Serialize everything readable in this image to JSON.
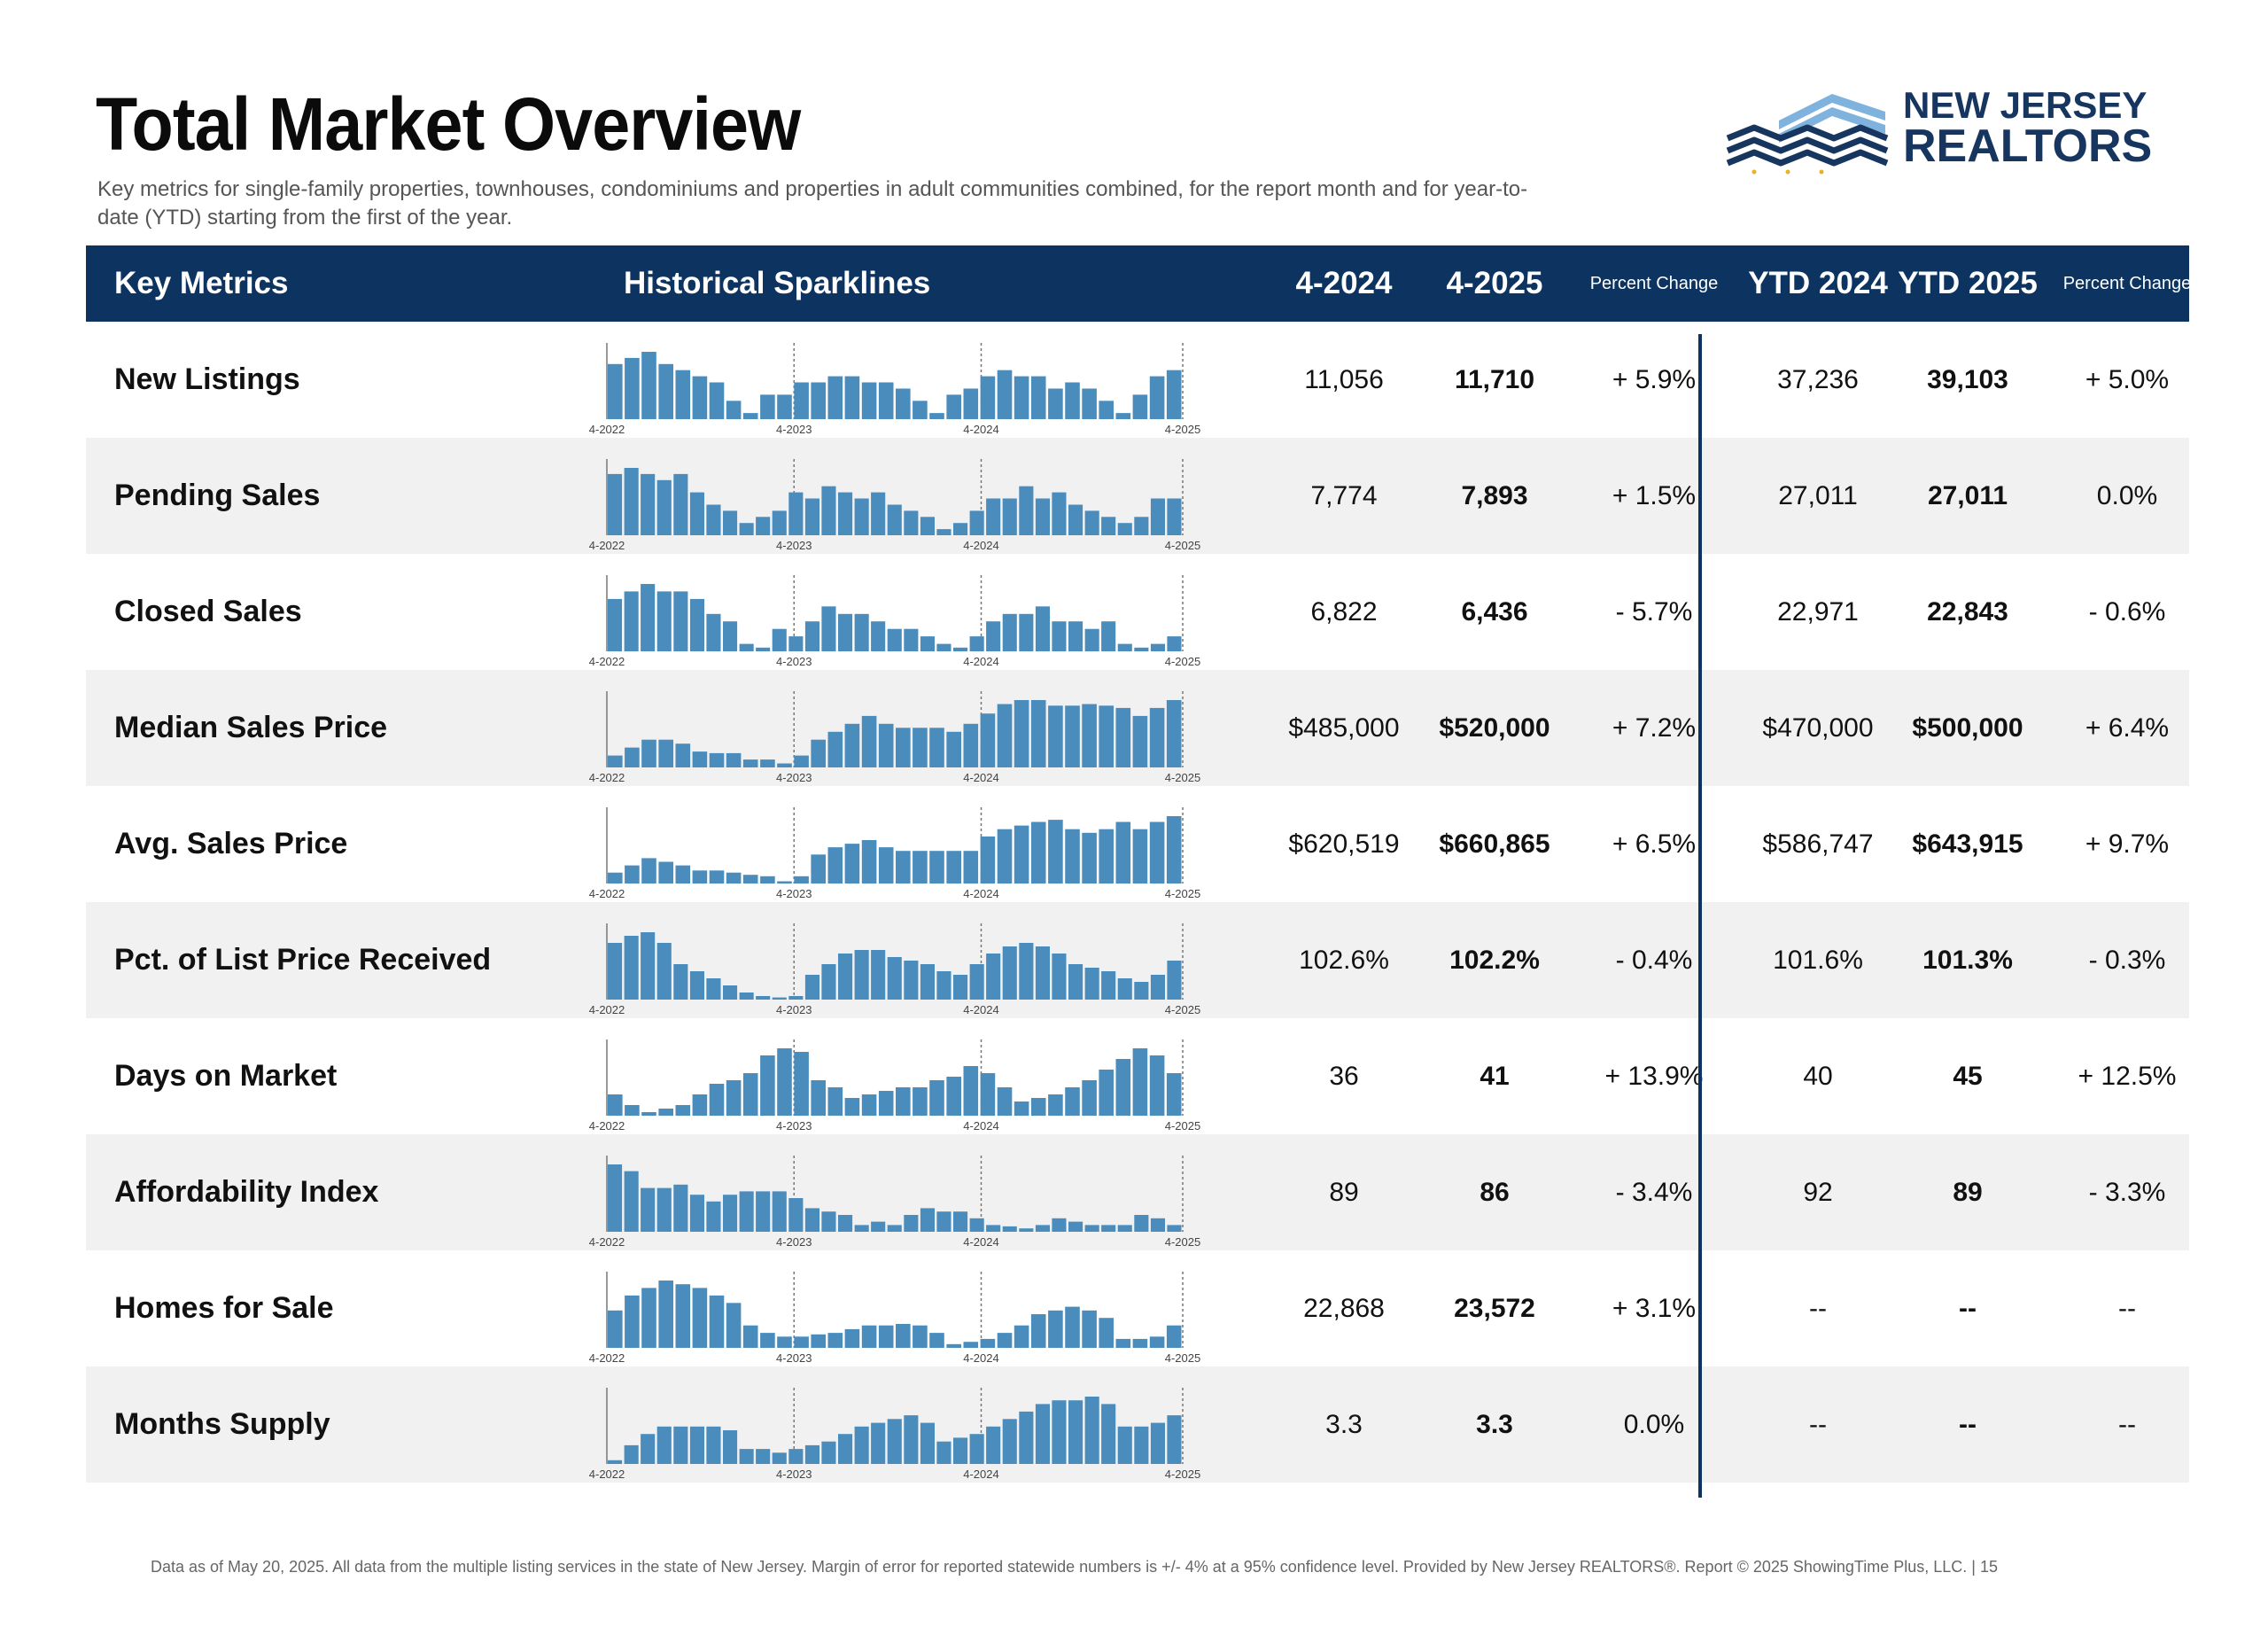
{
  "title": "Total Market Overview",
  "subtitle": "Key metrics for single-family properties, townhouses, condominiums and properties in adult communities combined, for the report month and for year-to-date (YTD) starting from the first of the year.",
  "logo": {
    "line1": "NEW JERSEY",
    "line2": "REALTORS"
  },
  "colors": {
    "header_bg": "#0d3460",
    "bar": "#4a8dbd",
    "alt_row": "#f1f1f1",
    "brand": "#16355f"
  },
  "table": {
    "headers": {
      "metric": "Key Metrics",
      "sparklines": "Historical Sparklines",
      "m2024": "4-2024",
      "m2025": "4-2025",
      "pct": "Percent Change",
      "ytd2024": "YTD 2024",
      "ytd2025": "YTD 2025",
      "ytd_pct": "Percent Change"
    },
    "spark_ticks": [
      "4-2022",
      "4-2023",
      "4-2024",
      "4-2025"
    ],
    "rows": [
      {
        "name": "New Listings",
        "m2024": "11,056",
        "m2025": "11,710",
        "pct": "+ 5.9%",
        "ytd2024": "37,236",
        "ytd2025": "39,103",
        "ytd_pct": "+ 5.0%",
        "spark": [
          9,
          10,
          11,
          9,
          8,
          7,
          6,
          3,
          1,
          4,
          4,
          6,
          6,
          7,
          7,
          6,
          6,
          5,
          3,
          1,
          4,
          5,
          7,
          8,
          7,
          7,
          5,
          6,
          5,
          3,
          1,
          4,
          7,
          8
        ]
      },
      {
        "name": "Pending Sales",
        "m2024": "7,774",
        "m2025": "7,893",
        "pct": "+ 1.5%",
        "ytd2024": "27,011",
        "ytd2025": "27,011",
        "ytd_pct": "0.0%",
        "spark": [
          10,
          11,
          10,
          9,
          10,
          7,
          5,
          4,
          2,
          3,
          4,
          7,
          6,
          8,
          7,
          6,
          7,
          5,
          4,
          3,
          1,
          2,
          4,
          6,
          6,
          8,
          6,
          7,
          5,
          4,
          3,
          2,
          3,
          6,
          6
        ]
      },
      {
        "name": "Closed Sales",
        "m2024": "6,822",
        "m2025": "6,436",
        "pct": "- 5.7%",
        "ytd2024": "22,971",
        "ytd2025": "22,843",
        "ytd_pct": "- 0.6%",
        "spark": [
          7,
          8,
          9,
          8,
          8,
          7,
          5,
          4,
          1,
          0.5,
          3,
          2,
          4,
          6,
          5,
          5,
          4,
          3,
          3,
          2,
          1,
          0.5,
          2,
          4,
          5,
          5,
          6,
          4,
          4,
          3,
          4,
          1,
          0.5,
          1,
          2
        ]
      },
      {
        "name": "Median Sales Price",
        "m2024": "$485,000",
        "m2025": "$520,000",
        "pct": "+ 7.2%",
        "ytd2024": "$470,000",
        "ytd2025": "$500,000",
        "ytd_pct": "+ 6.4%",
        "spark": [
          1.5,
          2.5,
          3.5,
          3.5,
          3,
          2,
          1.8,
          1.8,
          1,
          1,
          0.5,
          1.5,
          3.5,
          4.5,
          5.5,
          6.5,
          5.5,
          5,
          5,
          5,
          4.5,
          5.5,
          6.8,
          8,
          8.5,
          8.5,
          7.8,
          7.8,
          8,
          7.8,
          7.5,
          6.5,
          7.5,
          8.5
        ]
      },
      {
        "name": "Avg. Sales Price",
        "m2024": "$620,519",
        "m2025": "$660,865",
        "pct": "+ 6.5%",
        "ytd2024": "$586,747",
        "ytd2025": "$643,915",
        "ytd_pct": "+ 9.7%",
        "spark": [
          1.5,
          2.5,
          3.5,
          3,
          2.5,
          1.8,
          1.8,
          1.5,
          1.2,
          1,
          0.3,
          1,
          4,
          5,
          5.5,
          6,
          5,
          4.5,
          4.5,
          4.5,
          4.5,
          4.5,
          6.5,
          7.5,
          8,
          8.5,
          8.8,
          7.5,
          7,
          7.5,
          8.5,
          7.5,
          8.5,
          9.3
        ]
      },
      {
        "name": "Pct. of List Price Received",
        "m2024": "102.6%",
        "m2025": "102.2%",
        "pct": "- 0.4%",
        "ytd2024": "101.6%",
        "ytd2025": "101.3%",
        "ytd_pct": "- 0.3%",
        "spark": [
          8,
          9,
          9.5,
          8,
          5,
          4,
          3,
          2,
          1,
          0.5,
          0.3,
          0.5,
          3.5,
          5,
          6.5,
          7,
          7,
          6,
          5.5,
          5,
          4,
          3.5,
          5,
          6.5,
          7.5,
          8,
          7.5,
          6.5,
          5,
          4.5,
          4,
          3,
          2.5,
          3.5,
          5.5
        ]
      },
      {
        "name": "Days on Market",
        "m2024": "36",
        "m2025": "41",
        "pct": "+ 13.9%",
        "ytd2024": "40",
        "ytd2025": "45",
        "ytd_pct": "+ 12.5%",
        "spark": [
          3,
          1.5,
          0.5,
          1,
          1.5,
          3,
          4.5,
          5,
          6,
          8.5,
          9.5,
          9,
          5,
          4,
          2.5,
          3,
          3.5,
          4,
          4,
          5,
          5.5,
          7,
          6,
          4,
          2,
          2.5,
          3,
          4,
          5,
          6.5,
          8,
          9.5,
          8.5,
          6
        ]
      },
      {
        "name": "Affordability Index",
        "m2024": "89",
        "m2025": "86",
        "pct": "- 3.4%",
        "ytd2024": "92",
        "ytd2025": "89",
        "ytd_pct": "- 3.3%",
        "spark": [
          10,
          9,
          6.5,
          6.5,
          7,
          5.5,
          4.5,
          5.5,
          6,
          6,
          6,
          5,
          3.5,
          3,
          2.5,
          1,
          1.5,
          1,
          2.5,
          3.5,
          3,
          3,
          2,
          1,
          0.8,
          0.5,
          1,
          2,
          1.5,
          1,
          1,
          1,
          2.5,
          2,
          1
        ]
      },
      {
        "name": "Homes for Sale",
        "m2024": "22,868",
        "m2025": "23,572",
        "pct": "+ 3.1%",
        "ytd2024": "--",
        "ytd2025": "--",
        "ytd_pct": "--",
        "spark": [
          5,
          7,
          8,
          9,
          8.5,
          8,
          7,
          6,
          3,
          2,
          1.5,
          1.5,
          1.8,
          2,
          2.5,
          3,
          3,
          3.2,
          3,
          2,
          0.5,
          0.8,
          1.2,
          2,
          3,
          4.5,
          5,
          5.5,
          5,
          4,
          1.2,
          1.2,
          1.5,
          3
        ]
      },
      {
        "name": "Months Supply",
        "m2024": "3.3",
        "m2025": "3.3",
        "pct": "0.0%",
        "ytd2024": "--",
        "ytd2025": "--",
        "ytd_pct": "--",
        "spark": [
          0.5,
          2.5,
          4,
          5,
          5,
          5,
          5,
          4.5,
          2,
          2,
          1.5,
          2,
          2.5,
          3,
          4,
          5,
          5.5,
          6,
          6.5,
          5.5,
          3,
          3.5,
          4,
          5,
          6,
          7,
          8,
          8.5,
          8.5,
          9,
          8,
          5,
          5,
          5.5,
          6.5
        ]
      }
    ]
  },
  "footer": "Data as of May 20, 2025. All data from the multiple listing services in the state of New Jersey. Margin of error for reported statewide numbers is +/- 4% at a 95% confidence level. Provided by New Jersey REALTORS®. Report © 2025 ShowingTime Plus, LLC. | 15"
}
